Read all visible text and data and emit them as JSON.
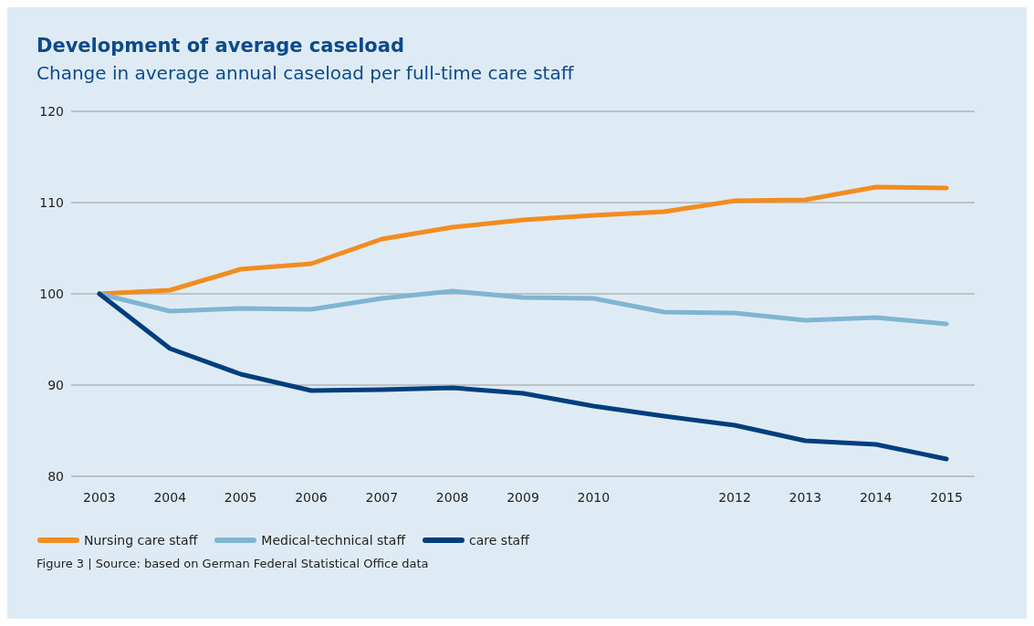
{
  "chart_data": {
    "type": "line",
    "title": "Development of average caseload",
    "subtitle": "Change in average annual caseload per full-time care staff",
    "x": [
      2003,
      2004,
      2005,
      2006,
      2007,
      2008,
      2009,
      2010,
      2011,
      2012,
      2013,
      2014,
      2015
    ],
    "series": [
      {
        "name": "Nursing care staff",
        "color": "#f28c1f",
        "values": [
          100,
          100.4,
          102.7,
          103.3,
          106.0,
          107.3,
          108.1,
          108.6,
          109.0,
          110.2,
          110.3,
          111.7,
          111.6
        ]
      },
      {
        "name": "Medical-technical staff",
        "color": "#7fb5d3",
        "values": [
          100,
          98.1,
          98.4,
          98.3,
          99.5,
          100.3,
          99.6,
          99.5,
          98.0,
          97.9,
          97.1,
          97.4,
          96.7
        ]
      },
      {
        "name": "care staff",
        "color": "#003e7e",
        "values": [
          100,
          94.0,
          91.2,
          89.4,
          89.5,
          89.7,
          89.1,
          87.7,
          86.6,
          85.6,
          83.9,
          83.5,
          81.9
        ]
      }
    ],
    "xlim": [
      2002.6,
      2015.4
    ],
    "xticks": [
      2003,
      2004,
      2005,
      2006,
      2007,
      2008,
      2009,
      2010,
      2012,
      2013,
      2014,
      2015
    ],
    "ylim": [
      80,
      120
    ],
    "yticks": [
      80,
      90,
      100,
      110,
      120
    ],
    "grid": "y",
    "legend": "bottom left",
    "marker": "none",
    "line_style": "solid",
    "annotations": [
      "Figure 3 | Source: based on German Federal Statistical Office data"
    ]
  }
}
